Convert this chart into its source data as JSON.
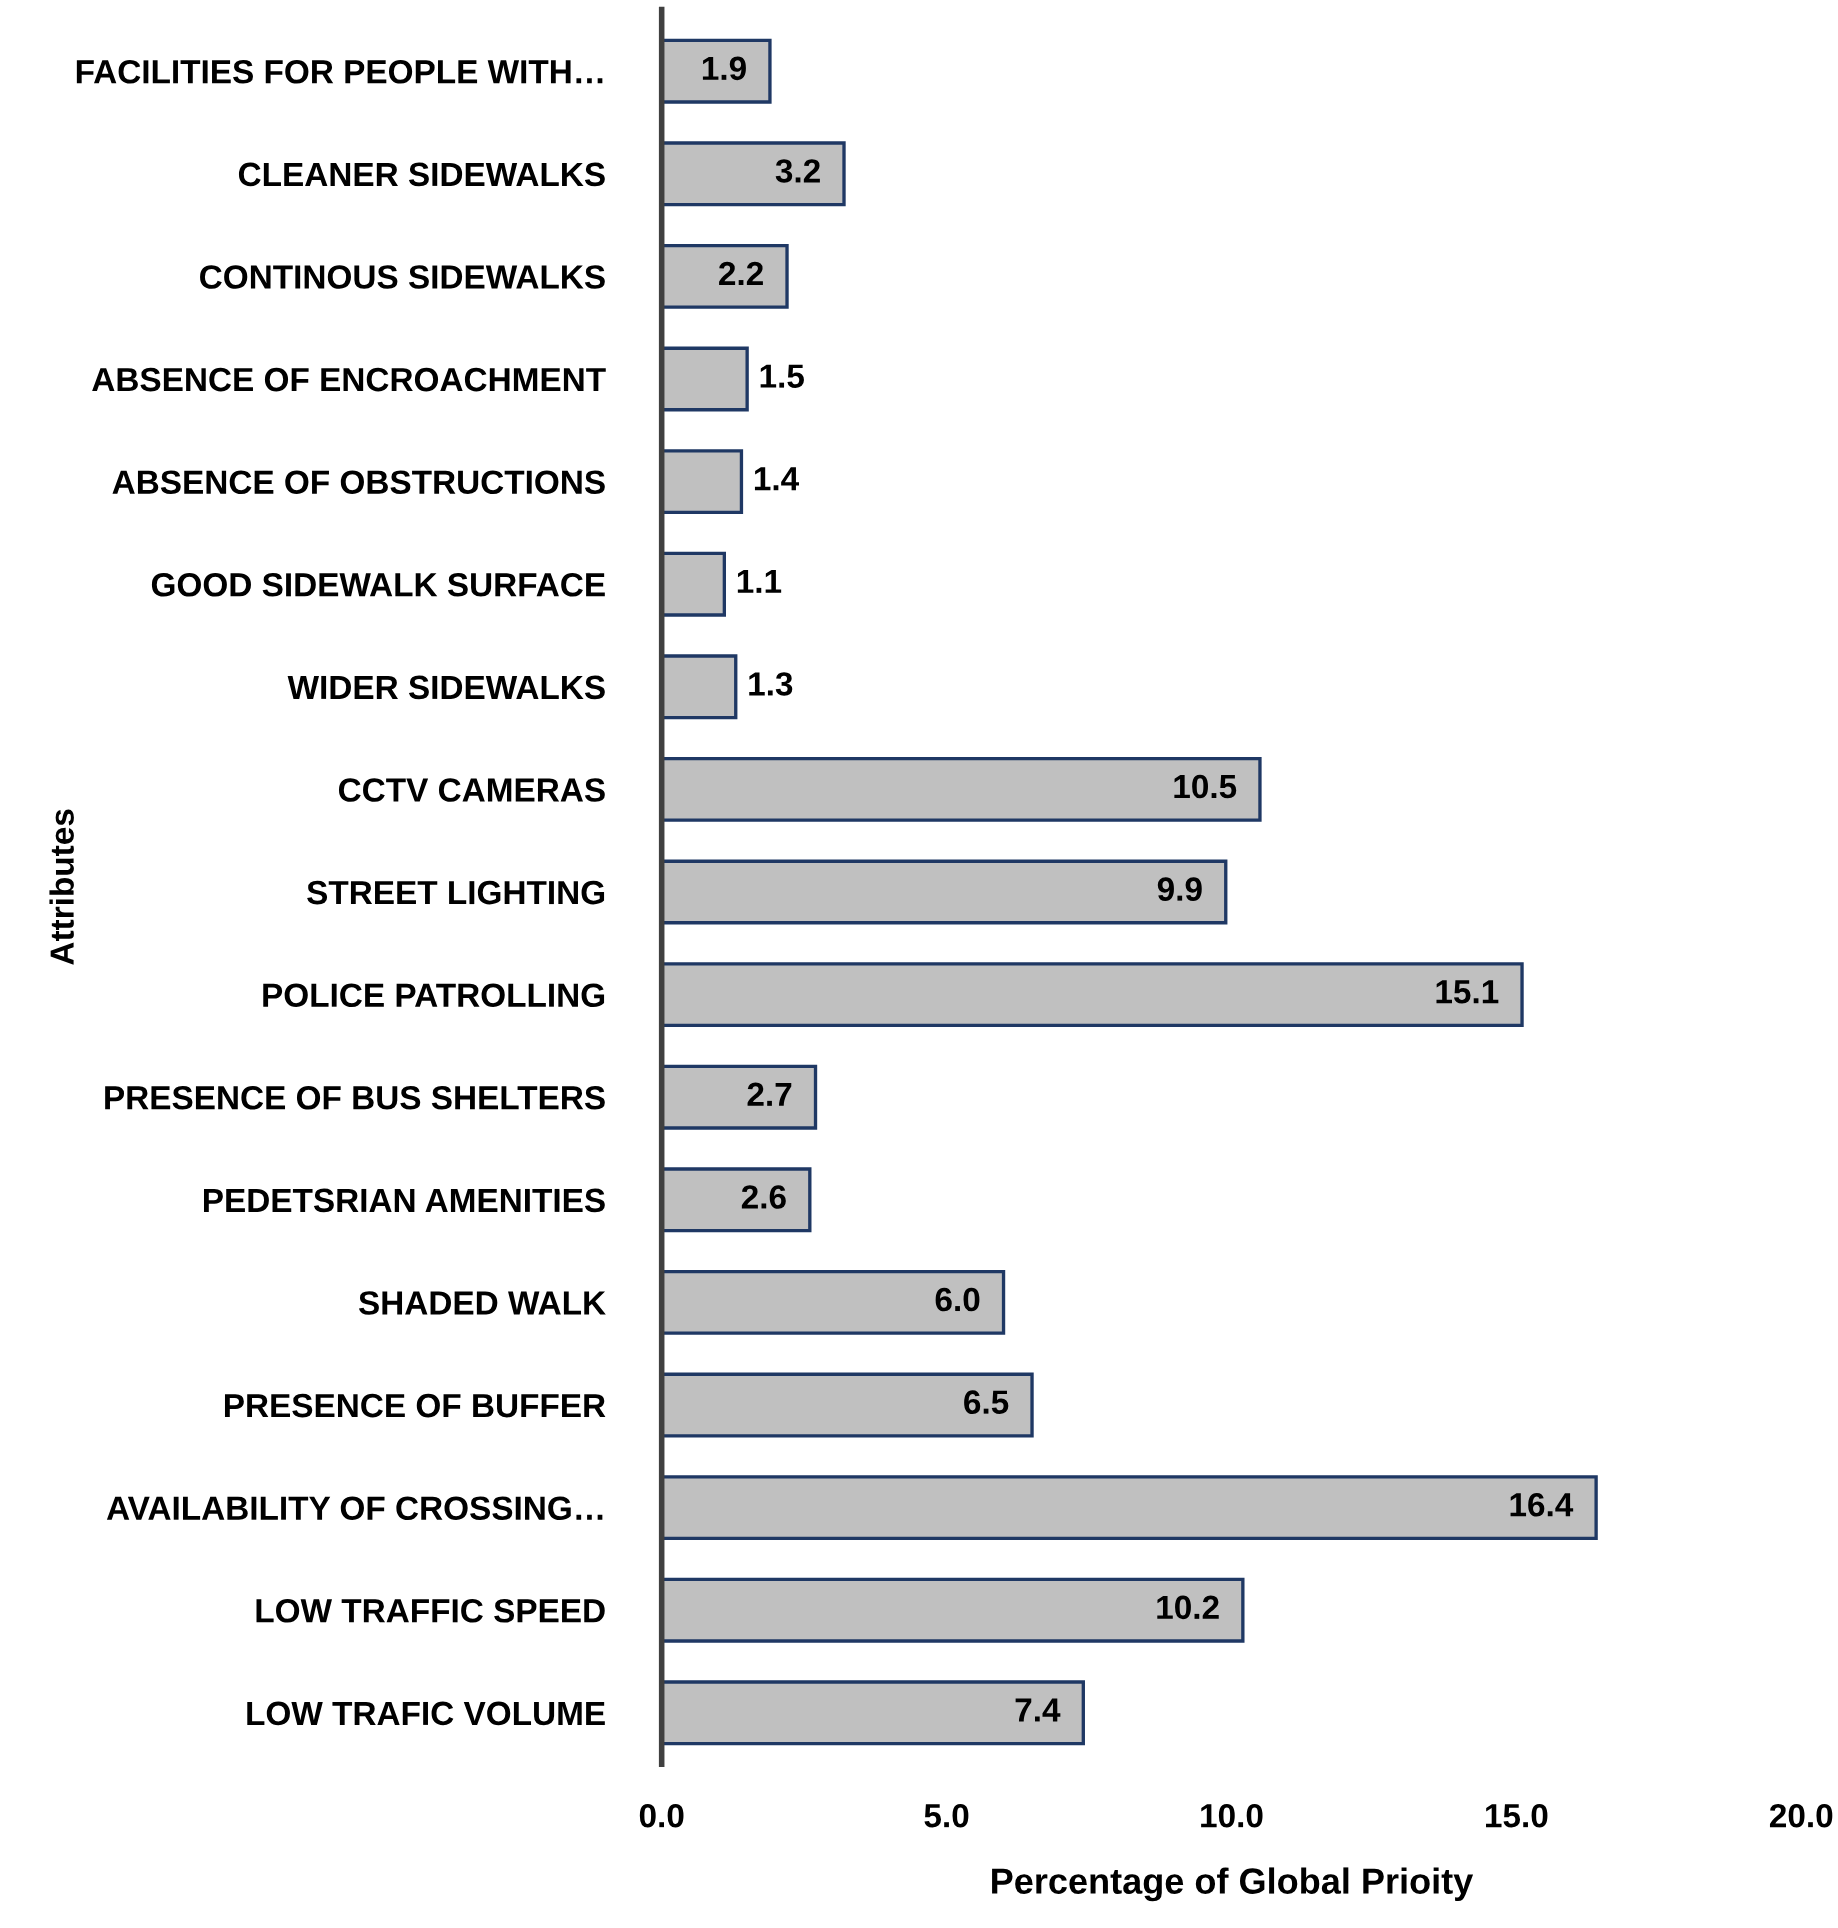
{
  "chart_data": {
    "type": "bar",
    "orientation": "horizontal",
    "xlabel": "Percentage of Global Prioity",
    "ylabel": "Attributes",
    "categories": [
      "FACILITIES FOR PEOPLE WITH…",
      "CLEANER SIDEWALKS",
      "CONTINOUS SIDEWALKS",
      "ABSENCE OF ENCROACHMENT",
      "ABSENCE OF OBSTRUCTIONS",
      "GOOD SIDEWALK SURFACE",
      "WIDER SIDEWALKS",
      "CCTV CAMERAS",
      "STREET LIGHTING",
      "POLICE PATROLLING",
      "PRESENCE OF BUS SHELTERS",
      "PEDETSRIAN AMENITIES",
      "SHADED WALK",
      "PRESENCE OF BUFFER",
      "AVAILABILITY OF CROSSING…",
      "LOW TRAFFIC SPEED",
      "LOW TRAFIC VOLUME"
    ],
    "values": [
      1.9,
      3.2,
      2.2,
      1.5,
      1.4,
      1.1,
      1.3,
      10.5,
      9.9,
      15.1,
      2.7,
      2.6,
      6.0,
      6.5,
      16.4,
      10.2,
      7.4
    ],
    "value_labels": [
      "1.9",
      "3.2",
      "2.2",
      "1.5",
      "1.4",
      "1.1",
      "1.3",
      "10.5",
      "9.9",
      "15.1",
      "2.7",
      "2.6",
      "6.0",
      "6.5",
      "16.4",
      "10.2",
      "7.4"
    ],
    "color": "#c0c0c0",
    "xlim": [
      0,
      20
    ],
    "xticks": [
      {
        "value": 0,
        "label": "0.0"
      },
      {
        "value": 5,
        "label": "5.0"
      },
      {
        "value": 10,
        "label": "10.0"
      },
      {
        "value": 15,
        "label": "15.0"
      },
      {
        "value": 20,
        "label": "20.0"
      }
    ],
    "grid": false,
    "legend": false
  }
}
